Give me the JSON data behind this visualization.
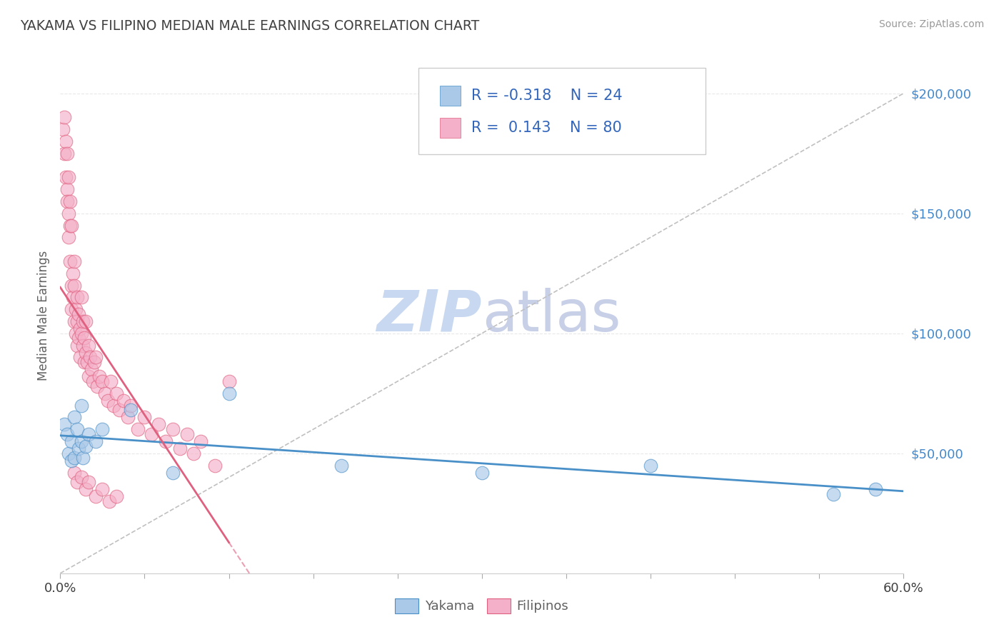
{
  "title": "YAKAMA VS FILIPINO MEDIAN MALE EARNINGS CORRELATION CHART",
  "source_text": "Source: ZipAtlas.com",
  "ylabel": "Median Male Earnings",
  "xlim": [
    0.0,
    0.6
  ],
  "ylim": [
    0,
    215000
  ],
  "ytick_values": [
    50000,
    100000,
    150000,
    200000
  ],
  "ytick_labels": [
    "$50,000",
    "$100,000",
    "$150,000",
    "$200,000"
  ],
  "yakama_color": "#aac8e8",
  "filipino_color": "#f4b0c8",
  "yakama_line_color": "#4a90c8",
  "filipino_line_color": "#e06080",
  "reference_line_color": "#c0c0c0",
  "r_yakama": -0.318,
  "n_yakama": 24,
  "r_filipino": 0.143,
  "n_filipino": 80,
  "legend_label_yakama": "Yakama",
  "legend_label_filipino": "Filipinos",
  "watermark_zip": "ZIP",
  "watermark_atlas": "atlas",
  "watermark_color_zip": "#c8d8f0",
  "watermark_color_atlas": "#c8d0e8",
  "background_color": "#ffffff",
  "grid_color": "#e8e8e8",
  "title_color": "#404040",
  "axis_label_color": "#606060",
  "tick_label_color_y": "#4488cc",
  "tick_label_color_x": "#404040",
  "legend_text_color": "#3366bb",
  "yakama_x": [
    0.003,
    0.005,
    0.006,
    0.008,
    0.008,
    0.01,
    0.01,
    0.012,
    0.013,
    0.015,
    0.015,
    0.016,
    0.018,
    0.02,
    0.025,
    0.03,
    0.05,
    0.08,
    0.12,
    0.2,
    0.3,
    0.42,
    0.55,
    0.58
  ],
  "yakama_y": [
    62000,
    58000,
    50000,
    55000,
    47000,
    65000,
    48000,
    60000,
    52000,
    70000,
    55000,
    48000,
    53000,
    58000,
    55000,
    60000,
    68000,
    42000,
    75000,
    45000,
    42000,
    45000,
    33000,
    35000
  ],
  "filipino_x": [
    0.002,
    0.003,
    0.003,
    0.004,
    0.004,
    0.005,
    0.005,
    0.005,
    0.006,
    0.006,
    0.006,
    0.007,
    0.007,
    0.007,
    0.008,
    0.008,
    0.008,
    0.009,
    0.009,
    0.01,
    0.01,
    0.01,
    0.011,
    0.011,
    0.012,
    0.012,
    0.012,
    0.013,
    0.013,
    0.014,
    0.014,
    0.015,
    0.015,
    0.016,
    0.016,
    0.017,
    0.017,
    0.018,
    0.018,
    0.019,
    0.02,
    0.02,
    0.021,
    0.022,
    0.023,
    0.024,
    0.025,
    0.026,
    0.028,
    0.03,
    0.032,
    0.034,
    0.036,
    0.038,
    0.04,
    0.042,
    0.045,
    0.048,
    0.05,
    0.055,
    0.06,
    0.065,
    0.07,
    0.075,
    0.08,
    0.085,
    0.09,
    0.095,
    0.1,
    0.11,
    0.01,
    0.012,
    0.015,
    0.018,
    0.02,
    0.025,
    0.03,
    0.035,
    0.04,
    0.12
  ],
  "filipino_y": [
    185000,
    190000,
    175000,
    165000,
    180000,
    160000,
    175000,
    155000,
    150000,
    165000,
    140000,
    155000,
    145000,
    130000,
    145000,
    120000,
    110000,
    125000,
    115000,
    120000,
    105000,
    130000,
    110000,
    100000,
    115000,
    105000,
    95000,
    108000,
    98000,
    102000,
    90000,
    100000,
    115000,
    95000,
    105000,
    88000,
    98000,
    92000,
    105000,
    88000,
    95000,
    82000,
    90000,
    85000,
    80000,
    88000,
    90000,
    78000,
    82000,
    80000,
    75000,
    72000,
    80000,
    70000,
    75000,
    68000,
    72000,
    65000,
    70000,
    60000,
    65000,
    58000,
    62000,
    55000,
    60000,
    52000,
    58000,
    50000,
    55000,
    45000,
    42000,
    38000,
    40000,
    35000,
    38000,
    32000,
    35000,
    30000,
    32000,
    80000
  ]
}
